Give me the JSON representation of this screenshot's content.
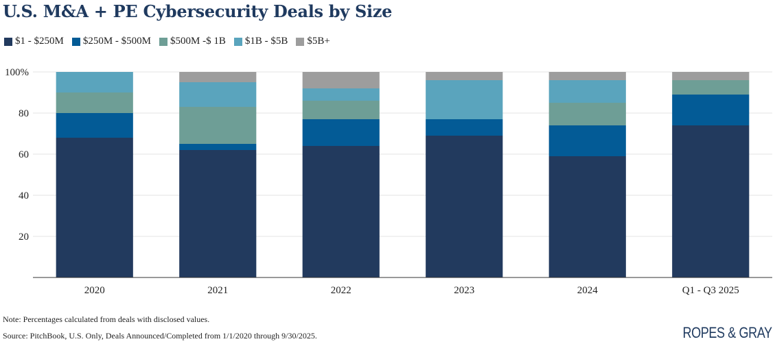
{
  "chart_data": {
    "type": "bar",
    "stacked": true,
    "title": "U.S. M&A + PE Cybersecurity Deals by Size",
    "xlabel": "",
    "ylabel": "",
    "ylim": [
      0,
      100
    ],
    "yticks": [
      20,
      40,
      60,
      80,
      100
    ],
    "ytick_labels": [
      "20",
      "40",
      "60",
      "80",
      "100%"
    ],
    "categories": [
      "2020",
      "2021",
      "2022",
      "2023",
      "2024",
      "Q1 - Q3 2025"
    ],
    "series": [
      {
        "name": "$1 - $250M",
        "color": "#223a5e",
        "values": [
          68,
          62,
          64,
          69,
          59,
          74
        ]
      },
      {
        "name": "$250M - $500M",
        "color": "#035b96",
        "values": [
          12,
          3,
          13,
          8,
          15,
          15
        ]
      },
      {
        "name": "$500M -$ 1B",
        "color": "#6e9e96",
        "values": [
          10,
          18,
          9,
          0,
          11,
          7
        ]
      },
      {
        "name": "$1B - $5B",
        "color": "#5aa4bd",
        "values": [
          10,
          12,
          6,
          19,
          11,
          0
        ]
      },
      {
        "name": "$5B+",
        "color": "#9d9d9d",
        "values": [
          0,
          5,
          8,
          4,
          4,
          4
        ]
      }
    ],
    "legend_position": "top-left",
    "grid": true
  },
  "footer": {
    "note": "Note: Percentages calculated from deals with disclosed values.",
    "source": "Source: PitchBook, U.S. Only, Deals Announced/Completed from 1/1/2020 through 9/30/2025.",
    "logo_text": "ROPES & GRAY"
  }
}
